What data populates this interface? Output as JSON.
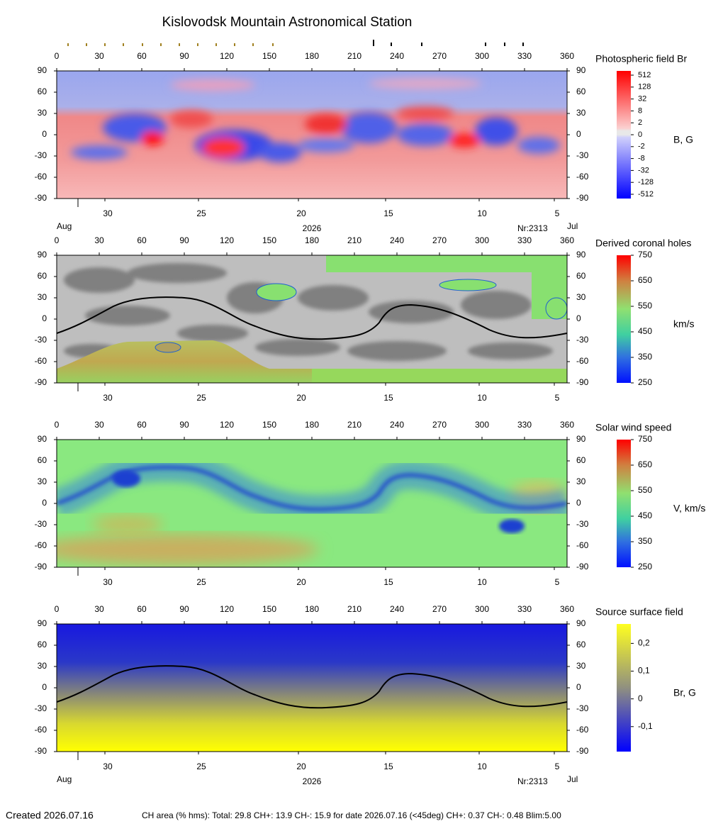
{
  "title": "Kislovodsk Mountain Astronomical Station",
  "xlim": [
    0,
    360
  ],
  "ylim": [
    -90,
    90
  ],
  "lon_ticks": [
    0,
    30,
    60,
    90,
    120,
    150,
    180,
    210,
    240,
    270,
    300,
    330,
    360
  ],
  "lat_ticks": [
    90,
    60,
    30,
    0,
    -30,
    -60,
    -90
  ],
  "date_ticks": [
    30,
    25,
    20,
    15,
    10,
    5
  ],
  "panels": [
    {
      "title": "Photospheric field Br",
      "unit": "B, G",
      "colorbar_ticks": [
        512,
        128,
        32,
        8,
        2,
        0,
        -2,
        -8,
        -32,
        -128,
        -512
      ],
      "start_month": "Aug",
      "year": "2026",
      "rotation": "Nr:2313",
      "end_month": "Jul"
    },
    {
      "title": "Derived coronal holes",
      "unit": "km/s",
      "clim": [
        250,
        750
      ],
      "colorbar_ticks": [
        750,
        650,
        550,
        450,
        350,
        250
      ]
    },
    {
      "title": "Solar wind speed",
      "unit": "V, km/s",
      "clim": [
        250,
        750
      ],
      "colorbar_ticks": [
        750,
        650,
        550,
        450,
        350,
        250
      ]
    },
    {
      "title": "Source surface field",
      "unit": "Br, G",
      "clim": [
        -0.19,
        0.27
      ],
      "colorbar_ticks": [
        {
          "value": 0.2,
          "label": "0,2"
        },
        {
          "value": 0.1,
          "label": "0,1"
        },
        0,
        {
          "value": -0.1,
          "label": "-0,1"
        }
      ],
      "start_month": "Aug",
      "year": "2026",
      "rotation": "Nr:2313",
      "end_month": "Jul"
    }
  ],
  "footer": {
    "created": "Created  2026.07.16",
    "stats": "CH area (% hms): Total: 29.8 CH+: 13.9   CH-: 15.9 for date 2026.07.16 (<45deg) CH+: 0.37    CH-: 0.48 Blim:5.00"
  }
}
